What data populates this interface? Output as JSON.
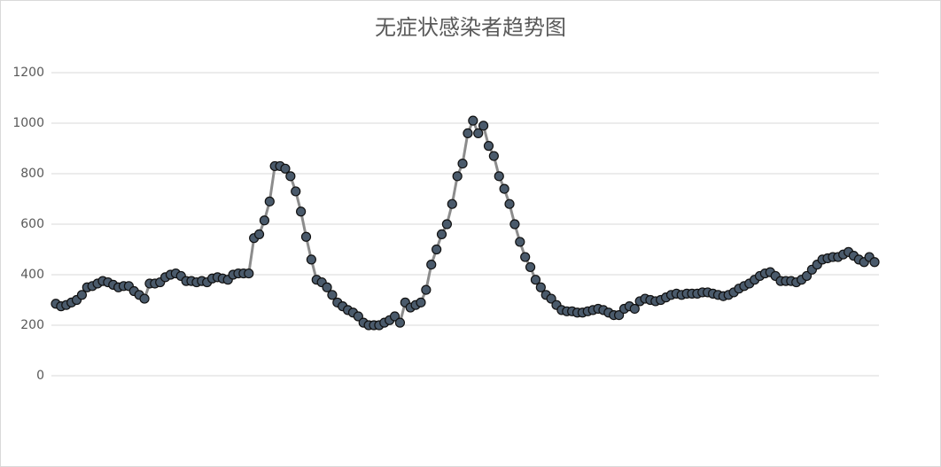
{
  "chart_data": {
    "type": "line",
    "title": "无症状感染者趋势图",
    "ylim": [
      0,
      1200
    ],
    "yticks": [
      0,
      200,
      400,
      600,
      800,
      1000,
      1200
    ],
    "grid": true,
    "color": "#8c8c8c",
    "marker_color": "#4a5a6b",
    "values": [
      285,
      275,
      280,
      290,
      300,
      320,
      350,
      355,
      365,
      375,
      370,
      360,
      350,
      355,
      355,
      335,
      320,
      305,
      365,
      365,
      370,
      390,
      400,
      405,
      395,
      375,
      375,
      370,
      375,
      370,
      385,
      390,
      385,
      380,
      400,
      405,
      405,
      405,
      545,
      560,
      615,
      690,
      830,
      830,
      820,
      790,
      730,
      650,
      550,
      460,
      380,
      370,
      350,
      320,
      290,
      275,
      260,
      250,
      235,
      210,
      200,
      200,
      200,
      210,
      220,
      235,
      210,
      290,
      270,
      280,
      290,
      340,
      440,
      500,
      560,
      600,
      680,
      790,
      840,
      960,
      1010,
      960,
      990,
      910,
      870,
      790,
      740,
      680,
      600,
      530,
      470,
      430,
      380,
      350,
      320,
      305,
      280,
      260,
      255,
      255,
      250,
      250,
      255,
      260,
      265,
      260,
      250,
      240,
      240,
      265,
      275,
      265,
      295,
      305,
      300,
      295,
      300,
      310,
      320,
      325,
      320,
      325,
      325,
      325,
      330,
      330,
      325,
      320,
      315,
      320,
      330,
      345,
      355,
      365,
      380,
      395,
      405,
      410,
      395,
      375,
      375,
      375,
      370,
      380,
      395,
      420,
      440,
      460,
      465,
      470,
      470,
      480,
      490,
      475,
      460,
      450,
      470,
      450
    ],
    "categories": [
      null,
      null,
      null,
      null,
      null,
      null,
      null,
      null,
      null,
      null,
      null,
      null,
      null,
      null,
      null,
      null,
      null,
      null,
      null,
      null,
      null,
      null,
      null,
      null,
      null,
      null,
      null,
      null,
      null,
      null,
      null,
      null,
      null,
      null,
      null,
      null,
      null,
      null,
      null,
      null,
      null,
      null,
      null,
      null,
      null,
      null,
      null,
      null,
      null,
      null,
      null,
      null,
      null,
      null,
      null,
      null,
      null,
      null,
      null,
      null,
      null,
      null,
      null,
      null,
      null,
      null,
      null,
      null,
      null,
      null,
      null,
      null,
      null,
      null,
      null,
      null,
      null,
      null,
      null,
      null,
      null,
      null,
      null,
      null,
      null,
      null,
      null,
      null,
      null,
      null,
      null,
      null,
      null,
      null,
      null,
      null,
      null,
      null,
      null,
      null,
      null,
      null,
      null,
      null,
      null,
      null,
      null,
      null,
      null,
      null,
      null,
      null,
      null,
      null,
      null,
      null,
      null,
      null,
      null,
      null,
      null,
      null,
      null,
      null,
      null,
      null,
      null,
      null,
      null,
      null,
      null,
      null,
      null,
      null,
      null,
      null,
      null,
      null,
      null,
      null,
      null,
      null,
      null,
      null,
      null,
      null,
      null,
      null,
      null,
      null,
      null,
      null,
      null,
      null,
      null,
      null,
      null,
      null
    ]
  }
}
